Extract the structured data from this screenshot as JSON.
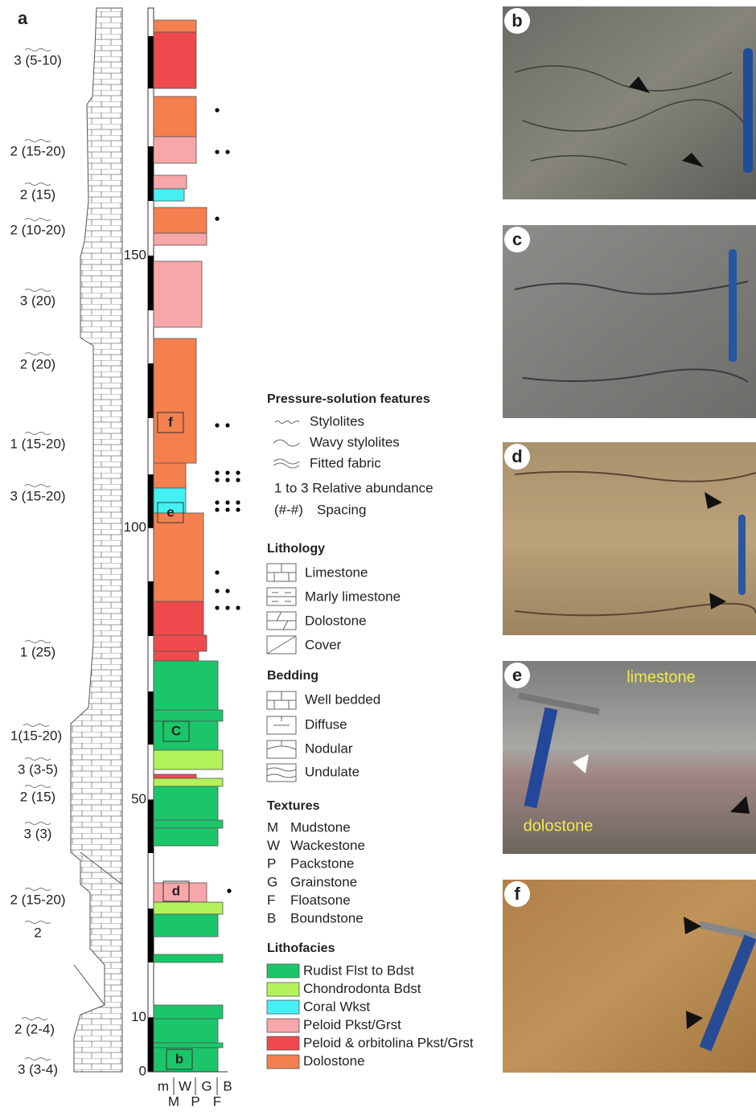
{
  "panel_a": {
    "label": "a",
    "spacing_labels": [
      "3 (5-10)",
      "2 (15-20)",
      "2 (15)",
      "2 (10-20)",
      "3 (20)",
      "2 (20)",
      "1 (15-20)",
      "3 (15-20)",
      "1 (25)",
      "1(15-20)",
      "3 (3-5)",
      "2 (15)",
      "3 (3)",
      "2 (15-20)",
      "2",
      "2 (2-4)",
      "3 (3-4)"
    ],
    "depth_ticks": [
      0,
      10,
      50,
      100,
      150
    ],
    "texture_codes_top": [
      "m",
      "W",
      "G",
      "B"
    ],
    "texture_codes_bottom": [
      "M",
      "P",
      "F"
    ],
    "photo_boxes": [
      "f",
      "e",
      "C",
      "d",
      "b"
    ]
  },
  "legend": {
    "pressure_solution": {
      "title": "Pressure-solution features",
      "items": [
        "Stylolites",
        "Wavy stylolites",
        "Fitted fabric"
      ],
      "abundance": "1 to 3 Relative abundance",
      "spacing_symbol": "(#-#)",
      "spacing": "Spacing"
    },
    "lithology": {
      "title": "Lithology",
      "items": [
        "Limestone",
        "Marly limestone",
        "Dolostone",
        "Cover"
      ]
    },
    "bedding": {
      "title": "Bedding",
      "items": [
        "Well bedded",
        "Diffuse",
        "Nodular",
        "Undulate"
      ]
    },
    "textures": {
      "title": "Textures",
      "codes": [
        "M",
        "W",
        "P",
        "G",
        "F",
        "B"
      ],
      "items": [
        "Mudstone",
        "Wackestone",
        "Packstone",
        "Grainstone",
        "Floatsone",
        "Boundstone"
      ]
    },
    "lithofacies": {
      "title": "Lithofacies",
      "items": [
        "Rudist Flst to Bdst",
        "Chondrodonta Bdst",
        "Coral Wkst",
        "Peloid Pkst/Grst",
        "Peloid & orbitolina Pkst/Grst",
        "Dolostone"
      ]
    }
  },
  "photos": [
    {
      "label": "b"
    },
    {
      "label": "c"
    },
    {
      "label": "d"
    },
    {
      "label": "e",
      "annotations": [
        "limestone",
        "dolostone"
      ]
    },
    {
      "label": "f"
    }
  ]
}
